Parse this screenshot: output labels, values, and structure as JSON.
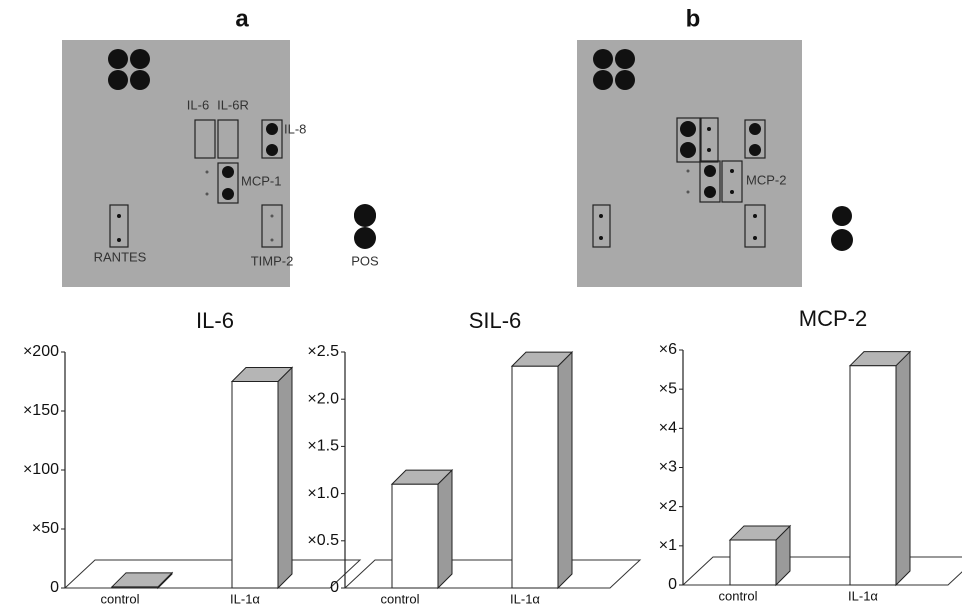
{
  "blots": [
    {
      "label": "a",
      "spots": [
        "IL-6",
        "IL-6R",
        "IL-8",
        "MCP-1",
        "RANTES",
        "TIMP-2",
        "POS"
      ]
    },
    {
      "label": "b",
      "spots": [
        "MCP-2"
      ]
    }
  ],
  "chart_data": [
    {
      "type": "bar3d",
      "title": "IL-6",
      "categories": [
        "control",
        "IL-1α"
      ],
      "values": [
        1,
        175
      ],
      "color": "#ffffff",
      "ylim": [
        0,
        200
      ],
      "yticks": [
        0,
        {
          "value": 50,
          "label": "×50"
        },
        {
          "value": 100,
          "label": "×100"
        },
        {
          "value": 150,
          "label": "×150"
        },
        {
          "value": 200,
          "label": "×200"
        }
      ]
    },
    {
      "type": "bar3d",
      "title": "SIL-6",
      "categories": [
        "control",
        "IL-1α"
      ],
      "values": [
        1.1,
        2.35
      ],
      "color": "#ffffff",
      "ylim": [
        0,
        2.5
      ],
      "yticks": [
        0,
        {
          "value": 0.5,
          "label": "×0.5"
        },
        {
          "value": 1,
          "label": "×1.0"
        },
        {
          "value": 1.5,
          "label": "×1.5"
        },
        {
          "value": 2,
          "label": "×2.0"
        },
        {
          "value": 2.5,
          "label": "×2.5"
        }
      ]
    },
    {
      "type": "bar3d",
      "title": "MCP-2",
      "categories": [
        "control",
        "IL-1α"
      ],
      "values": [
        1.15,
        5.6
      ],
      "color": "#ffffff",
      "ylim": [
        0,
        6
      ],
      "yticks": [
        0,
        {
          "value": 1,
          "label": "×1"
        },
        {
          "value": 2,
          "label": "×2"
        },
        {
          "value": 3,
          "label": "×3"
        },
        {
          "value": 4,
          "label": "×4"
        },
        {
          "value": 5,
          "label": "×5"
        },
        {
          "value": 6,
          "label": "×6"
        }
      ]
    }
  ]
}
